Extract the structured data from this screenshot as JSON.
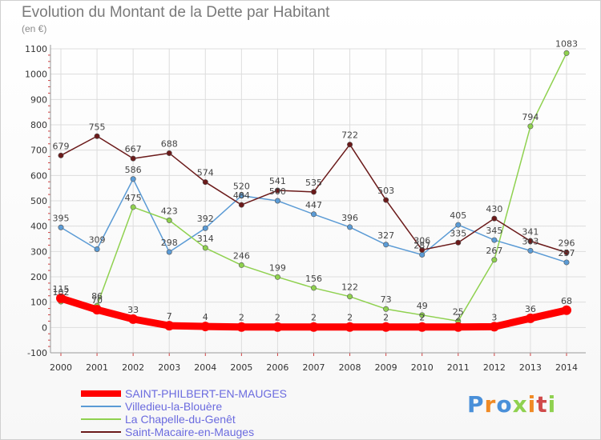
{
  "chart_data": {
    "type": "line",
    "title": "Evolution du Montant de la Dette par Habitant",
    "unit_label": "(en €)",
    "x": [
      "2000",
      "2001",
      "2002",
      "2003",
      "2004",
      "2005",
      "2006",
      "2007",
      "2008",
      "2009",
      "2010",
      "2011",
      "2012",
      "2013",
      "2014"
    ],
    "ylim": [
      -100,
      1100
    ],
    "yticks": [
      -100,
      0,
      100,
      200,
      300,
      400,
      500,
      600,
      700,
      800,
      900,
      1000,
      1100
    ],
    "grid": true,
    "legend_position": "bottom-left",
    "series": [
      {
        "name": "SAINT-PHILBERT-EN-MAUGES",
        "color": "#ff0000",
        "values": [
          115,
          70,
          33,
          7,
          4,
          2,
          2,
          2,
          2,
          2,
          2,
          2,
          3,
          36,
          68
        ]
      },
      {
        "name": "Villedieu-la-Blouère",
        "color": "#5b9bd5",
        "values": [
          395,
          309,
          586,
          298,
          392,
          520,
          500,
          447,
          396,
          327,
          287,
          405,
          345,
          303,
          257
        ]
      },
      {
        "name": "La Chapelle-du-Genêt",
        "color": "#8fd14f",
        "values": [
          102,
          86,
          475,
          423,
          314,
          246,
          199,
          156,
          122,
          73,
          49,
          25,
          267,
          794,
          1083
        ]
      },
      {
        "name": "Saint-Macaire-en-Mauges",
        "color": "#6b1a1a",
        "values": [
          679,
          755,
          667,
          688,
          574,
          484,
          541,
          535,
          722,
          503,
          306,
          335,
          430,
          341,
          296
        ]
      }
    ],
    "data_labels": [
      [
        "115",
        "70",
        "33",
        "7",
        "4",
        "2",
        "2",
        "2",
        "2",
        "2",
        "2",
        "2",
        "3",
        "36",
        "68"
      ],
      [
        "395",
        "309",
        "586",
        "298",
        "392",
        "520",
        "500",
        "447",
        "396",
        "327",
        "287",
        "405",
        "345",
        "303",
        "257"
      ],
      [
        "102",
        "86",
        "475",
        "423",
        "314",
        "246",
        "199",
        "156",
        "122",
        "73",
        "49",
        "25",
        "267",
        "794",
        "1083"
      ],
      [
        "679",
        "755",
        "667",
        "688",
        "574",
        "484",
        "541",
        "535",
        "722",
        "503",
        "306",
        "335",
        "430",
        "341",
        "296"
      ]
    ]
  },
  "logo": {
    "text": "Proxiti",
    "colors": [
      "#4a90d9",
      "#f08a24",
      "#4a90d9",
      "#8fd14f",
      "#f08a24",
      "#d04a4a",
      "#8fd14f"
    ]
  }
}
